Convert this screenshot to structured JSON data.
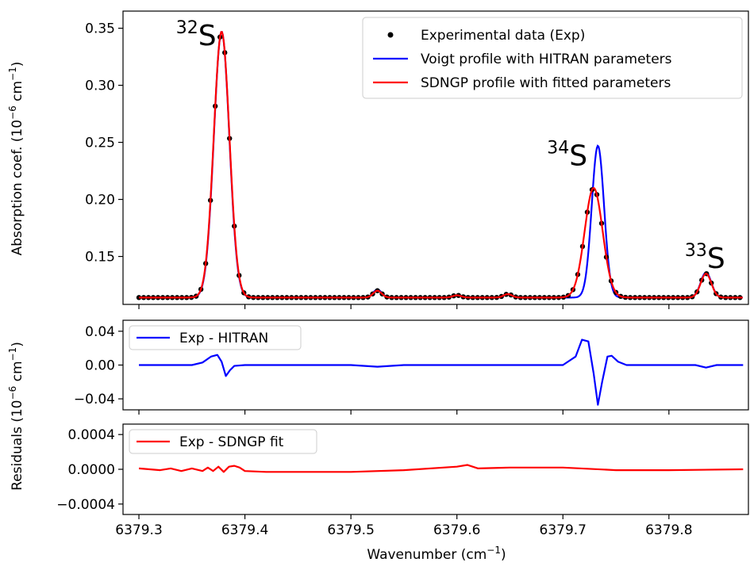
{
  "chart_data": [
    {
      "type": "line",
      "panel": "main",
      "ylabel": "Absorption coef. (10",
      "ylabel_exp": "−6",
      "ylabel_tail": " cm",
      "ylabel_unit_exp": "−1",
      "ylabel_close": ")",
      "xlim": [
        6379.285,
        6379.875
      ],
      "ylim": [
        0.108,
        0.365
      ],
      "yticks": [
        0.15,
        0.2,
        0.25,
        0.3,
        0.35
      ],
      "ytick_labels": [
        "0.15",
        "0.20",
        "0.25",
        "0.30",
        "0.35"
      ],
      "xticks": [
        6379.3,
        6379.4,
        6379.5,
        6379.6,
        6379.7,
        6379.8
      ],
      "legend_position": "top-right",
      "legend": [
        {
          "label": "Experimental data (Exp)",
          "marker": "dot",
          "color": "#000000"
        },
        {
          "label": "Voigt profile with HITRAN parameters",
          "marker": "line",
          "color": "#0000ff"
        },
        {
          "label": "SDNGP profile with fitted parameters",
          "marker": "line",
          "color": "#ff0000"
        }
      ],
      "annotations": [
        {
          "sup": "32",
          "text": "S",
          "x": 6379.335,
          "y": 0.335
        },
        {
          "sup": "34",
          "text": "S",
          "x": 6379.685,
          "y": 0.23
        },
        {
          "sup": "33",
          "text": "S",
          "x": 6379.815,
          "y": 0.14
        }
      ],
      "baseline": 0.114,
      "peaks": {
        "voigt": [
          {
            "x0": 6379.378,
            "amp": 0.233,
            "w": 0.0073
          },
          {
            "x0": 6379.525,
            "amp": 0.007,
            "w": 0.004
          },
          {
            "x0": 6379.6,
            "amp": 0.002,
            "w": 0.004
          },
          {
            "x0": 6379.648,
            "amp": 0.003,
            "w": 0.004
          },
          {
            "x0": 6379.733,
            "amp": 0.133,
            "w": 0.0058
          },
          {
            "x0": 6379.835,
            "amp": 0.022,
            "w": 0.005
          }
        ],
        "sdngp": [
          {
            "x0": 6379.378,
            "amp": 0.233,
            "w": 0.0074
          },
          {
            "x0": 6379.525,
            "amp": 0.006,
            "w": 0.004
          },
          {
            "x0": 6379.6,
            "amp": 0.002,
            "w": 0.004
          },
          {
            "x0": 6379.648,
            "amp": 0.003,
            "w": 0.004
          },
          {
            "x0": 6379.729,
            "amp": 0.096,
            "w": 0.0085
          },
          {
            "x0": 6379.835,
            "amp": 0.021,
            "w": 0.005
          }
        ]
      },
      "experimental_points": {
        "x_start": 6379.3,
        "x_end": 6379.87,
        "step": 0.0045
      }
    },
    {
      "type": "line",
      "panel": "residual-hitran",
      "ylim": [
        -0.053,
        0.053
      ],
      "yticks": [
        -0.04,
        0.0,
        0.04
      ],
      "ytick_labels": [
        "−0.04",
        "0.00",
        "0.04"
      ],
      "legend_position": "top-left",
      "series": [
        {
          "name": "Exp - HITRAN",
          "color": "#0000ff",
          "x": [
            6379.3,
            6379.35,
            6379.36,
            6379.368,
            6379.374,
            6379.378,
            6379.382,
            6379.386,
            6379.39,
            6379.4,
            6379.5,
            6379.525,
            6379.55,
            6379.6,
            6379.7,
            6379.712,
            6379.718,
            6379.724,
            6379.729,
            6379.733,
            6379.737,
            6379.742,
            6379.746,
            6379.752,
            6379.76,
            6379.8,
            6379.825,
            6379.835,
            6379.845,
            6379.87
          ],
          "y": [
            0.0,
            0.0,
            0.003,
            0.01,
            0.012,
            0.004,
            -0.013,
            -0.006,
            -0.001,
            0.0,
            0.0,
            -0.002,
            0.0,
            0.0,
            0.0,
            0.01,
            0.03,
            0.028,
            -0.01,
            -0.047,
            -0.02,
            0.01,
            0.011,
            0.004,
            0.0,
            0.0,
            0.0,
            -0.003,
            0.0,
            0.0
          ]
        }
      ]
    },
    {
      "type": "line",
      "panel": "residual-sdngp",
      "ylim": [
        -0.00052,
        0.00052
      ],
      "yticks": [
        -0.0004,
        0.0,
        0.0004
      ],
      "ytick_labels": [
        "−0.0004",
        "0.0000",
        "0.0004"
      ],
      "legend_position": "top-left",
      "series": [
        {
          "name": "Exp - SDNGP fit",
          "color": "#ff0000",
          "x": [
            6379.3,
            6379.32,
            6379.33,
            6379.34,
            6379.35,
            6379.36,
            6379.365,
            6379.37,
            6379.375,
            6379.38,
            6379.385,
            6379.39,
            6379.395,
            6379.4,
            6379.42,
            6379.5,
            6379.55,
            6379.6,
            6379.61,
            6379.62,
            6379.65,
            6379.7,
            6379.75,
            6379.8,
            6379.87
          ],
          "y": [
            1e-05,
            -1e-05,
            1e-05,
            -2e-05,
            1e-05,
            -2e-05,
            2e-05,
            -2e-05,
            3e-05,
            -3e-05,
            3e-05,
            4e-05,
            2e-05,
            -2e-05,
            -3e-05,
            -3e-05,
            -1e-05,
            3e-05,
            5e-05,
            1e-05,
            2e-05,
            2e-05,
            -1e-05,
            -1e-05,
            0.0
          ]
        }
      ]
    }
  ],
  "shared": {
    "xtick_labels": [
      "6379.3",
      "6379.4",
      "6379.5",
      "6379.6",
      "6379.7",
      "6379.8"
    ],
    "xlabel": "Wavenumber (cm",
    "xlabel_exp": "−1",
    "xlabel_close": ")",
    "residual_ylabel": "Residuals (10",
    "residual_ylabel_exp": "−6",
    "residual_ylabel_tail": " cm",
    "residual_ylabel_unit_exp": "−1",
    "residual_ylabel_close": ")"
  }
}
